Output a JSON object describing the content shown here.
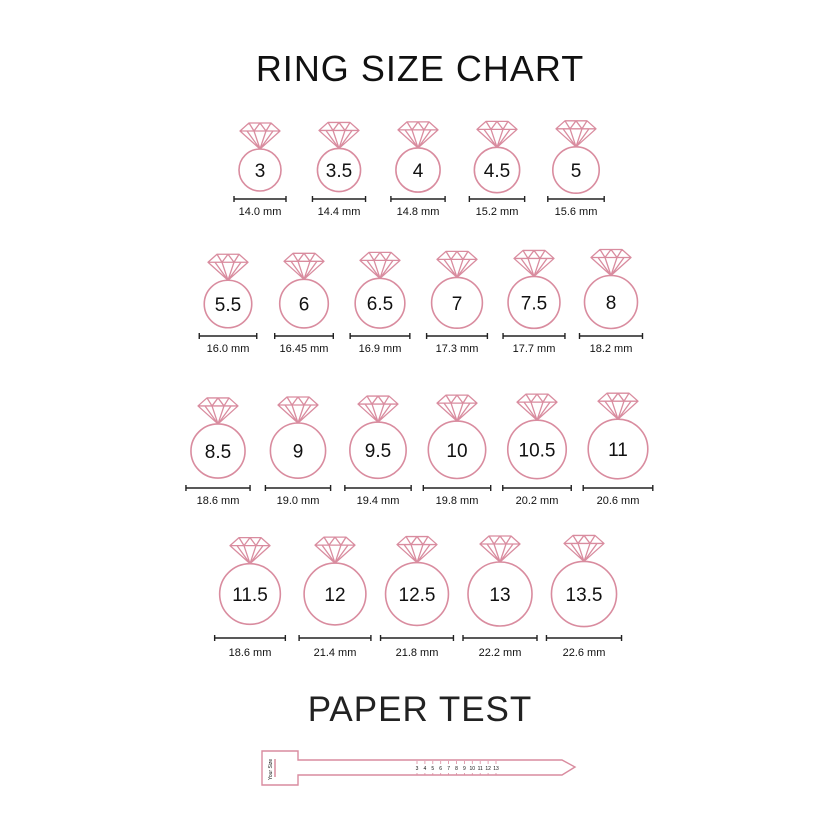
{
  "title": "RING SIZE CHART",
  "paper_test_title": "PAPER TEST",
  "colors": {
    "ring": "#d98c9f",
    "text": "#111111",
    "measure_line": "#222222"
  },
  "icons": {
    "ring": "diamond-ring-icon",
    "strip": "paper-ring-sizer"
  },
  "rows": [
    [
      {
        "size": "3",
        "mm": "14.0 mm"
      },
      {
        "size": "3.5",
        "mm": "14.4 mm"
      },
      {
        "size": "4",
        "mm": "14.8 mm"
      },
      {
        "size": "4.5",
        "mm": "15.2 mm"
      },
      {
        "size": "5",
        "mm": "15.6 mm"
      }
    ],
    [
      {
        "size": "5.5",
        "mm": "16.0 mm"
      },
      {
        "size": "6",
        "mm": "16.45 mm"
      },
      {
        "size": "6.5",
        "mm": "16.9 mm"
      },
      {
        "size": "7",
        "mm": "17.3 mm"
      },
      {
        "size": "7.5",
        "mm": "17.7 mm"
      },
      {
        "size": "8",
        "mm": "18.2 mm"
      }
    ],
    [
      {
        "size": "8.5",
        "mm": "18.6 mm"
      },
      {
        "size": "9",
        "mm": "19.0 mm"
      },
      {
        "size": "9.5",
        "mm": "19.4 mm"
      },
      {
        "size": "10",
        "mm": "19.8 mm"
      },
      {
        "size": "10.5",
        "mm": "20.2 mm"
      },
      {
        "size": "11",
        "mm": "20.6 mm"
      }
    ],
    [
      {
        "size": "11.5",
        "mm": "18.6 mm"
      },
      {
        "size": "12",
        "mm": "21.4 mm"
      },
      {
        "size": "12.5",
        "mm": "21.8 mm"
      },
      {
        "size": "13",
        "mm": "22.2 mm"
      },
      {
        "size": "13.5",
        "mm": "22.6 mm"
      }
    ]
  ],
  "strip": {
    "label": "Your Size",
    "scale": [
      "3",
      "4",
      "5",
      "6",
      "7",
      "8",
      "9",
      "10",
      "11",
      "12",
      "13"
    ]
  }
}
